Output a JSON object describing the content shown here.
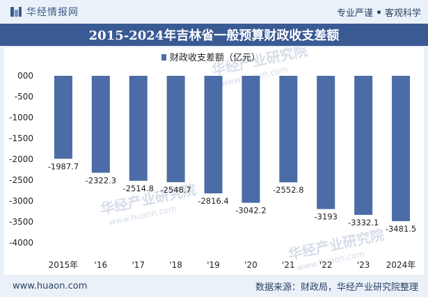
{
  "header": {
    "brand": "华经情报网",
    "tagline_left": "专业严谨",
    "tagline_right": "客观科学"
  },
  "footer": {
    "website": "www.huaon.com",
    "source": "数据来源：财政局，华经产业研究院整理"
  },
  "colors": {
    "bar": "#4b6ca6",
    "title_band": "#3a5a94",
    "axis_text": "#1f1f1f",
    "watermark": "#d6dde8"
  },
  "chart_data": {
    "type": "bar",
    "title": "2015-2024年吉林省一般预算财政收支差额",
    "categories": [
      "2015年",
      "'16",
      "'17",
      "'18",
      "'19",
      "'20",
      "'21",
      "'22",
      "'23",
      "2024年"
    ],
    "series": [
      {
        "name": "财政收支差额（亿元）",
        "values": [
          -1987.7,
          -2322.3,
          -2514.8,
          -2548.7,
          -2816.4,
          -3042.2,
          -2552.8,
          -3193,
          -3332.1,
          -3481.5
        ]
      }
    ],
    "data_labels": [
      "-1987.7",
      "-2322.3",
      "-2514.8",
      "-2548.7",
      "-2816.4",
      "-3042.2",
      "-2552.8",
      "-3193",
      "-3332.1",
      "-3481.5"
    ],
    "y_ticks": [
      "000",
      "-500",
      "-1000",
      "-1500",
      "-2000",
      "-2500",
      "-3000",
      "-3500",
      "-4000"
    ],
    "ylim": [
      -4000,
      0
    ],
    "grid": false,
    "legend_position": "top"
  },
  "watermark": {
    "text_cn": "华经产业研究院",
    "text_url": "www.huaon.com"
  }
}
